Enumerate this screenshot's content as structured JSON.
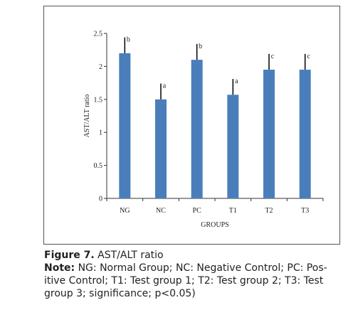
{
  "chart_data": {
    "type": "bar",
    "categories": [
      "NG",
      "NC",
      "PC",
      "T1",
      "T2",
      "T3"
    ],
    "values": [
      2.2,
      1.5,
      2.1,
      1.57,
      1.95,
      1.95
    ],
    "errors": [
      0.24,
      0.24,
      0.24,
      0.24,
      0.24,
      0.24
    ],
    "significance": [
      "b",
      "a",
      "b",
      "a",
      "c",
      "c"
    ],
    "xlabel": "GROUPS",
    "ylabel": "AST/ALT ratio",
    "ylim": [
      0,
      2.5
    ],
    "yticks": [
      "0",
      "0.5",
      "1",
      "1.5",
      "2",
      "2.5"
    ],
    "grid": false,
    "bar_color": "#4a7ebb",
    "error_color": "#000000"
  },
  "caption": {
    "figure_label": "Figure 7.",
    "figure_title": " AST/ALT ratio",
    "note_label": "Note:",
    "note_line1": " NG: Normal Group; NC: Negative Control; PC: Pos-",
    "note_line2": "itive Control; T1: Test group 1; T2: Test group 2; T3: Test",
    "note_line3": "group 3; significance; p<0.05)"
  }
}
